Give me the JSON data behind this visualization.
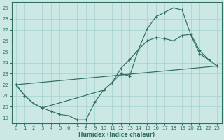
{
  "xlabel": "Humidex (Indice chaleur)",
  "bg_color": "#cce8e4",
  "grid_color": "#aad4d0",
  "line_color": "#2d7060",
  "xlim": [
    -0.5,
    23.5
  ],
  "ylim": [
    18.5,
    29.5
  ],
  "xticks": [
    0,
    1,
    2,
    3,
    4,
    5,
    6,
    7,
    8,
    9,
    10,
    11,
    12,
    13,
    14,
    15,
    16,
    17,
    18,
    19,
    20,
    21,
    22,
    23
  ],
  "yticks": [
    19,
    20,
    21,
    22,
    23,
    24,
    25,
    26,
    27,
    28,
    29
  ],
  "line1_x": [
    0,
    1,
    2,
    3,
    4,
    5,
    6,
    7,
    8,
    9,
    10,
    11,
    12,
    13,
    14,
    15,
    16,
    17,
    18,
    19,
    20,
    21,
    22,
    23
  ],
  "line1_y": [
    22.0,
    21.0,
    20.3,
    19.9,
    19.6,
    19.3,
    19.2,
    18.8,
    18.8,
    20.4,
    21.5,
    22.2,
    23.0,
    22.8,
    25.2,
    27.1,
    28.2,
    28.6,
    29.0,
    28.8,
    26.5,
    24.8,
    24.3,
    23.7
  ],
  "line2_x": [
    0,
    1,
    2,
    3,
    10,
    11,
    12,
    13,
    14,
    15,
    16,
    17,
    18,
    19,
    20,
    21,
    22,
    23
  ],
  "line2_y": [
    22.0,
    21.0,
    20.3,
    19.9,
    21.5,
    22.2,
    23.5,
    24.3,
    25.2,
    26.0,
    26.3,
    26.2,
    26.0,
    26.5,
    26.6,
    25.1,
    24.3,
    23.7
  ],
  "line3_x": [
    0,
    23
  ],
  "line3_y": [
    22.0,
    23.7
  ]
}
